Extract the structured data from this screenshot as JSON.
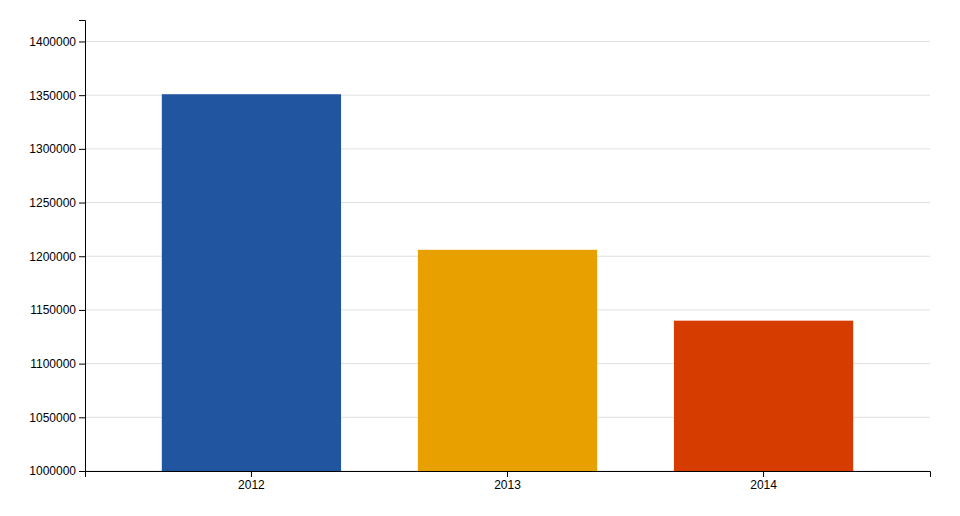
{
  "chart_data": {
    "type": "bar",
    "categories": [
      "2012",
      "2013",
      "2014"
    ],
    "values": [
      1350867.0,
      1206000.0,
      1140000.0
    ],
    "colors": [
      "#2255A0",
      "#E8A000",
      "#D63B00"
    ],
    "ylim": [
      1000000,
      1420000
    ],
    "yticks": [
      1000000,
      1050000,
      1100000,
      1150000,
      1200000,
      1250000,
      1300000,
      1350000,
      1400000
    ],
    "grid": true,
    "tick_labels": true
  }
}
